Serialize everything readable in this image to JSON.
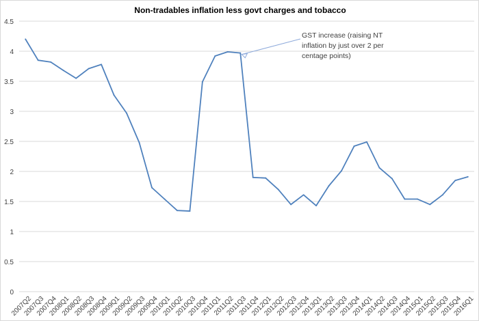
{
  "chart_data": {
    "type": "line",
    "title": "Non-tradables inflation less govt charges and tobacco",
    "xlabel": "",
    "ylabel": "",
    "ylim": [
      0,
      4.5
    ],
    "yticks": [
      "0",
      "0.5",
      "1",
      "1.5",
      "2",
      "2.5",
      "3",
      "3.5",
      "4",
      "4.5"
    ],
    "grid": true,
    "legend": "none",
    "categories": [
      "2007Q2",
      "2007Q3",
      "2007Q4",
      "2008Q1",
      "2008Q2",
      "2008Q3",
      "2008Q4",
      "2009Q1",
      "2009Q2",
      "2009Q3",
      "2009Q4",
      "2010Q1",
      "2010Q2",
      "2010Q3",
      "2010Q4",
      "2011Q1",
      "2011Q2",
      "2011Q3",
      "2011Q4",
      "2012Q1",
      "2012Q2",
      "2012Q3",
      "2012Q4",
      "2013Q1",
      "2013Q2",
      "2013Q3",
      "2013Q4",
      "2014Q1",
      "2014Q2",
      "2014Q3",
      "2014Q4",
      "2015Q1",
      "2015Q2",
      "2015Q3",
      "2015Q4",
      "2016Q1"
    ],
    "series": [
      {
        "name": "Non-tradables inflation less govt charges and tobacco",
        "color": "#4f81bd",
        "values": [
          4.2,
          3.85,
          3.82,
          3.68,
          3.55,
          3.71,
          3.78,
          3.27,
          2.97,
          2.48,
          1.73,
          1.54,
          1.35,
          1.34,
          3.49,
          3.92,
          3.99,
          3.97,
          1.9,
          1.89,
          1.7,
          1.45,
          1.61,
          1.43,
          1.76,
          2.01,
          2.42,
          2.49,
          2.06,
          1.88,
          1.54,
          1.54,
          1.45,
          1.61,
          1.85,
          1.91
        ]
      }
    ],
    "annotation": {
      "text": "GST increase (raising NT inflation by just over 2 per centage points)",
      "points_to": "2011Q3"
    }
  }
}
